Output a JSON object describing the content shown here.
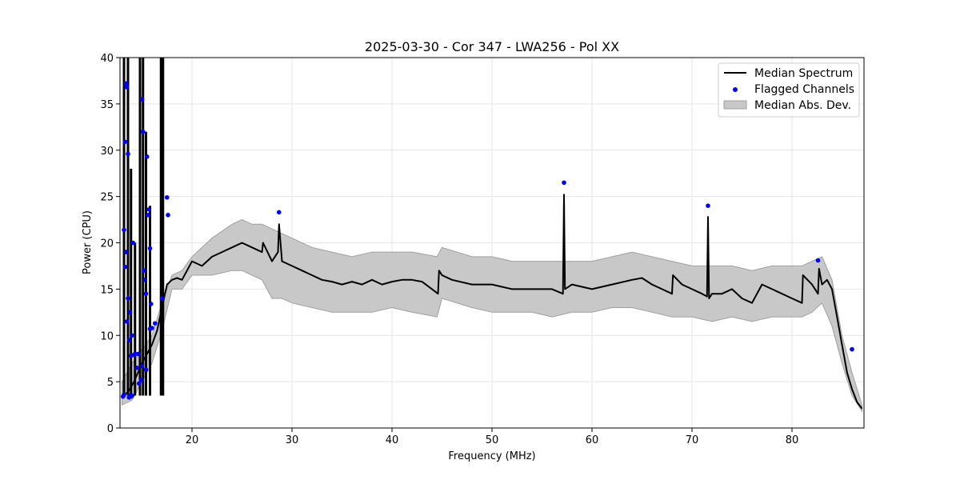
{
  "chart_data": {
    "type": "line",
    "title": "2025-03-30 - Cor 347 - LWA256 - Pol XX",
    "xlabel": "Frequency (MHz)",
    "ylabel": "Power (CPU)",
    "xlim": [
      12.8,
      87.2
    ],
    "ylim": [
      0,
      40
    ],
    "xticks": [
      20,
      30,
      40,
      50,
      60,
      70,
      80
    ],
    "yticks": [
      0,
      5,
      10,
      15,
      20,
      25,
      30,
      35,
      40
    ],
    "grid": true,
    "legend": {
      "position": "top-right",
      "entries": [
        "Median Spectrum",
        "Flagged Channels",
        "Median Abs. Dev."
      ]
    },
    "colors": {
      "median": "#000000",
      "flagged": "#0000ff",
      "band": "#c8c8c8",
      "band_edge": "#a0a0a0"
    },
    "median_spectrum": {
      "x": [
        13.0,
        13.2,
        13.5,
        13.8,
        14.2,
        14.6,
        15.0,
        15.5,
        16.0,
        16.5,
        17.0,
        17.5,
        18.0,
        18.5,
        19.0,
        19.5,
        20.0,
        21.0,
        22.0,
        23.0,
        24.0,
        25.0,
        26.0,
        27.0,
        27.1,
        28.0,
        28.6,
        28.7,
        29.0,
        30.0,
        31.0,
        32.0,
        33.0,
        34.0,
        35.0,
        36.0,
        37.0,
        38.0,
        39.0,
        40.0,
        41.0,
        42.0,
        43.0,
        44.0,
        44.6,
        44.7,
        45.0,
        46.0,
        48.0,
        50.0,
        52.0,
        54.0,
        56.0,
        57.1,
        57.2,
        57.3,
        58.0,
        60.0,
        62.0,
        64.0,
        65.0,
        66.0,
        67.0,
        68.0,
        68.1,
        69.0,
        70.0,
        71.0,
        71.5,
        71.6,
        71.7,
        72.0,
        73.0,
        74.0,
        75.0,
        76.0,
        77.0,
        78.0,
        79.0,
        80.0,
        81.0,
        81.1,
        82.0,
        82.6,
        82.7,
        83.0,
        83.5,
        84.0,
        84.5,
        85.0,
        85.5,
        86.0,
        86.5,
        87.0
      ],
      "y": [
        3.5,
        3.6,
        3.8,
        4.2,
        5.0,
        6.0,
        7.0,
        8.0,
        9.0,
        10.5,
        13.0,
        15.5,
        16.0,
        16.2,
        16.0,
        17.0,
        18.0,
        17.5,
        18.5,
        19.0,
        19.5,
        20.0,
        19.5,
        19.0,
        20.0,
        18.0,
        19.0,
        22.0,
        18.0,
        17.5,
        17.0,
        16.5,
        16.0,
        15.8,
        15.5,
        15.8,
        15.5,
        16.0,
        15.5,
        15.8,
        16.0,
        16.0,
        15.8,
        15.0,
        14.5,
        17.0,
        16.5,
        16.0,
        15.5,
        15.5,
        15.0,
        15.0,
        15.0,
        14.5,
        25.2,
        15.0,
        15.5,
        15.0,
        15.5,
        16.0,
        16.2,
        15.5,
        15.0,
        14.5,
        16.5,
        15.5,
        15.0,
        14.5,
        14.2,
        22.8,
        14.0,
        14.5,
        14.5,
        15.0,
        14.0,
        13.5,
        15.5,
        15.0,
        14.5,
        14.0,
        13.5,
        16.5,
        15.5,
        14.5,
        17.2,
        15.5,
        16.0,
        15.0,
        12.0,
        9.0,
        6.0,
        4.2,
        2.8,
        2.1
      ]
    },
    "rfi_spikes": [
      {
        "x": 13.2,
        "top": 40.0
      },
      {
        "x": 13.6,
        "top": 40.0
      },
      {
        "x": 13.9,
        "top": 28.0
      },
      {
        "x": 14.3,
        "top": 20.0
      },
      {
        "x": 14.8,
        "top": 40.0
      },
      {
        "x": 15.1,
        "top": 40.0
      },
      {
        "x": 15.4,
        "top": 32.0
      },
      {
        "x": 15.8,
        "top": 24.0
      },
      {
        "x": 16.9,
        "top": 40.0
      },
      {
        "x": 17.1,
        "top": 40.0
      }
    ],
    "mad_band": {
      "x": [
        13.0,
        14.0,
        15.0,
        16.0,
        17.0,
        18.0,
        19.0,
        20.0,
        22.0,
        24.0,
        25.0,
        26.0,
        27.0,
        28.0,
        29.0,
        30.0,
        32.0,
        34.0,
        36.0,
        38.0,
        40.0,
        42.0,
        44.5,
        45.0,
        48.0,
        50.0,
        52.0,
        54.0,
        56.0,
        58.0,
        60.0,
        62.0,
        64.0,
        66.0,
        68.0,
        70.0,
        72.0,
        74.0,
        76.0,
        78.0,
        80.0,
        81.0,
        82.0,
        83.0,
        84.0,
        85.0,
        86.0,
        87.0
      ],
      "upper": [
        5.0,
        7.0,
        8.5,
        10.0,
        13.5,
        16.5,
        17.0,
        18.5,
        20.5,
        22.0,
        22.5,
        22.0,
        22.0,
        21.5,
        21.0,
        20.5,
        19.5,
        19.0,
        18.5,
        19.0,
        19.0,
        19.0,
        18.5,
        19.5,
        18.5,
        18.5,
        18.0,
        18.0,
        18.0,
        18.0,
        18.0,
        18.5,
        19.0,
        18.5,
        18.0,
        17.5,
        17.5,
        17.5,
        17.0,
        17.5,
        17.5,
        17.5,
        18.0,
        18.5,
        16.0,
        10.0,
        6.0,
        2.5
      ],
      "lower": [
        2.5,
        3.0,
        5.0,
        7.0,
        10.5,
        15.0,
        15.0,
        16.5,
        16.5,
        17.0,
        17.0,
        16.5,
        16.0,
        14.0,
        14.0,
        13.5,
        13.0,
        12.5,
        12.5,
        12.5,
        13.0,
        12.5,
        12.0,
        14.0,
        13.0,
        12.5,
        12.5,
        12.5,
        12.0,
        12.5,
        12.5,
        13.0,
        13.0,
        12.5,
        12.0,
        12.0,
        11.5,
        12.0,
        11.5,
        12.0,
        12.0,
        12.0,
        12.5,
        13.5,
        11.0,
        7.0,
        3.5,
        1.8
      ]
    },
    "flagged_channels": {
      "x": [
        13.1,
        13.2,
        13.3,
        13.4,
        13.5,
        13.6,
        13.7,
        13.8,
        13.9,
        14.0,
        13.2,
        13.4,
        13.6,
        13.8,
        14.0,
        14.1,
        14.3,
        14.5,
        14.7,
        14.9,
        15.0,
        15.1,
        15.2,
        15.3,
        15.4,
        15.5,
        15.6,
        15.7,
        15.8,
        15.9,
        16.0,
        16.3,
        17.0,
        17.5,
        17.6,
        13.3,
        13.5,
        13.7,
        13.9,
        14.2,
        14.6,
        15.0,
        15.4,
        15.8,
        28.7,
        57.2,
        71.6,
        82.6,
        86.0
      ],
      "y": [
        3.4,
        3.6,
        30.9,
        37.2,
        36.8,
        29.6,
        3.3,
        3.5,
        3.4,
        3.5,
        21.4,
        19.0,
        14.0,
        12.5,
        10.0,
        20.0,
        8.0,
        6.5,
        4.8,
        5.2,
        35.5,
        32.0,
        17.0,
        16.0,
        14.5,
        29.3,
        23.0,
        23.6,
        19.4,
        13.4,
        10.8,
        11.3,
        14.0,
        24.9,
        23.0,
        17.4,
        11.5,
        9.5,
        7.8,
        7.9,
        8.0,
        6.7,
        6.3,
        10.7,
        23.3,
        26.5,
        24.0,
        18.1,
        8.5
      ]
    }
  }
}
